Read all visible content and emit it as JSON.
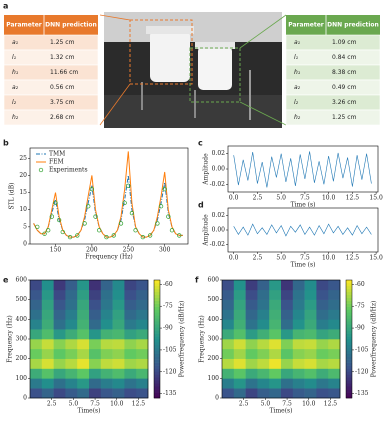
{
  "panel_labels": [
    "a",
    "b",
    "c",
    "d",
    "e",
    "f"
  ],
  "tables": [
    {
      "header": [
        "Parameter",
        "DNN prediction"
      ],
      "header_color": "#e8792c",
      "row_colors": [
        "#fbe3d3",
        "#fdf1e8"
      ],
      "rows": [
        [
          "a₁",
          "1.25 cm"
        ],
        [
          "l₁",
          "1.32 cm"
        ],
        [
          "h₁",
          "11.66 cm"
        ],
        [
          "a₂",
          "0.56 cm"
        ],
        [
          "l₂",
          "3.75 cm"
        ],
        [
          "h₂",
          "2.68 cm"
        ]
      ]
    },
    {
      "header": [
        "Parameter",
        "DNN prediction"
      ],
      "header_color": "#6aa84f",
      "row_colors": [
        "#dcebd3",
        "#eef5e9"
      ],
      "rows": [
        [
          "a₁",
          "1.09 cm"
        ],
        [
          "l₁",
          "0.84 cm"
        ],
        [
          "h₁",
          "8.38 cm"
        ],
        [
          "a₂",
          "0.49 cm"
        ],
        [
          "l₂",
          "3.26 cm"
        ],
        [
          "h₂",
          "1.25 cm"
        ]
      ]
    }
  ],
  "chart_data": [
    {
      "type": "line",
      "xlabel": "Frequency (Hz)",
      "ylabel": "STL (dB)",
      "legend": "upper left",
      "x": [
        120,
        125,
        130,
        135,
        140,
        145,
        150,
        155,
        160,
        165,
        170,
        175,
        180,
        185,
        190,
        195,
        200,
        205,
        210,
        215,
        220,
        225,
        230,
        235,
        240,
        245,
        250,
        255,
        260,
        265,
        270,
        275,
        280,
        285,
        290,
        295,
        300,
        305,
        310,
        315,
        320,
        325
      ],
      "xlim": [
        115,
        332
      ],
      "xticks": [
        150,
        200,
        250,
        300
      ],
      "ylim": [
        0,
        28
      ],
      "yticks": [
        0,
        5,
        10,
        15,
        20,
        25
      ],
      "series": [
        {
          "name": "TMM",
          "color": "#1f77b4",
          "style": "dashdot",
          "values": [
            6,
            4,
            3,
            3,
            5,
            9,
            13,
            7,
            4,
            2.5,
            2,
            2,
            2.5,
            4,
            7,
            12,
            17,
            9,
            5,
            3,
            2,
            2,
            2.5,
            4,
            7,
            13,
            20,
            10,
            5,
            3,
            2,
            2,
            2.5,
            4,
            7,
            12,
            18,
            9,
            5,
            3,
            2.5,
            2.5
          ]
        },
        {
          "name": "FEM",
          "color": "#ff7f0e",
          "style": "solid",
          "values": [
            6,
            4,
            3,
            3,
            5,
            10,
            15,
            8,
            4,
            2.5,
            2,
            2,
            2.5,
            4,
            8,
            14,
            20,
            10,
            5,
            3,
            2,
            2,
            2.5,
            4,
            8,
            16,
            27,
            12,
            5,
            3,
            2,
            2,
            2.5,
            4,
            8,
            14,
            21,
            10,
            5,
            3,
            2.5,
            2.5
          ]
        },
        {
          "name": "Experiments",
          "color": "#2ca02c",
          "style": "marker",
          "x": [
            125,
            135,
            140,
            145,
            150,
            155,
            160,
            170,
            180,
            190,
            195,
            200,
            205,
            210,
            220,
            230,
            240,
            245,
            250,
            255,
            260,
            270,
            280,
            290,
            295,
            300,
            305,
            310,
            320
          ],
          "values": [
            5,
            3,
            4,
            8,
            12,
            7,
            3.5,
            2,
            2.5,
            6,
            11,
            16,
            8,
            4,
            2,
            2.5,
            6,
            12,
            17,
            9,
            4,
            2,
            2.5,
            6,
            11,
            16,
            8,
            4,
            2.5
          ]
        }
      ]
    },
    {
      "type": "signal",
      "xlabel": "Time (s)",
      "ylabel": "Amplitude",
      "color": "#1f77b4",
      "x": [
        0,
        0.5,
        1,
        1.5,
        2,
        2.5,
        3,
        3.5,
        4,
        4.5,
        5,
        5.5,
        6,
        6.5,
        7,
        7.5,
        8,
        8.5,
        9,
        9.5,
        10,
        10.5,
        11,
        11.5,
        12,
        12.5,
        13,
        13.5,
        14,
        14.5
      ],
      "values": [
        0.018,
        -0.021,
        0.012,
        -0.015,
        0.022,
        -0.019,
        0.009,
        -0.024,
        0.016,
        -0.011,
        0.02,
        -0.017,
        0.014,
        -0.022,
        0.019,
        -0.013,
        0.023,
        -0.018,
        0.01,
        -0.02,
        0.017,
        -0.016,
        0.021,
        -0.012,
        0.015,
        -0.023,
        0.018,
        -0.014,
        0.02,
        -0.019
      ],
      "xlim": [
        -0.6,
        15.2
      ],
      "xticks": [
        {
          "value": 0,
          "label": "0.0"
        },
        2.5,
        {
          "value": 5,
          "label": "5.0"
        },
        7.5,
        {
          "value": 10,
          "label": "10.0"
        },
        12.5,
        {
          "value": 15,
          "label": "15.0"
        }
      ],
      "ylim": [
        -0.03,
        0.03
      ],
      "yticks": [
        -0.02,
        {
          "value": 0,
          "label": "0.00"
        },
        0.02
      ]
    },
    {
      "type": "signal",
      "xlabel": "Time (s)",
      "ylabel": "Amplitude",
      "color": "#1f77b4",
      "x": [
        0,
        0.5,
        1,
        1.5,
        2,
        2.5,
        3,
        3.5,
        4,
        4.5,
        5,
        5.5,
        6,
        6.5,
        7,
        7.5,
        8,
        8.5,
        9,
        9.5,
        10,
        10.5,
        11,
        11.5,
        12,
        12.5,
        13,
        13.5,
        14,
        14.5
      ],
      "values": [
        0.005,
        -0.006,
        0.004,
        -0.007,
        0.008,
        -0.005,
        0.003,
        -0.006,
        0.007,
        -0.004,
        0.006,
        -0.008,
        0.005,
        -0.003,
        0.007,
        -0.006,
        0.004,
        -0.007,
        0.006,
        -0.005,
        0.008,
        -0.004,
        0.005,
        -0.006,
        0.003,
        -0.007,
        0.006,
        -0.005,
        0.004,
        -0.006
      ],
      "xlim": [
        -0.6,
        15.2
      ],
      "xticks": [
        {
          "value": 0,
          "label": "0.0"
        },
        2.5,
        {
          "value": 5,
          "label": "5.0"
        },
        7.5,
        {
          "value": 10,
          "label": "10.0"
        },
        12.5,
        {
          "value": 15,
          "label": "15.0"
        }
      ],
      "ylim": [
        -0.03,
        0.03
      ],
      "yticks": [
        -0.02,
        {
          "value": 0,
          "label": "0.00"
        },
        0.02
      ]
    },
    {
      "type": "heatmap",
      "xlabel": "Time(s)",
      "ylabel": "Frequency (Hz)",
      "colorbar_label": "Power/frequency (dB/Hz)",
      "colorscale": [
        "#440154",
        "#3b528b",
        "#21918c",
        "#5ec962",
        "#fde725"
      ],
      "xlim": [
        0,
        13.6
      ],
      "xticks": [
        {
          "value": 2.5,
          "label": "2.5"
        },
        {
          "value": 5,
          "label": "5.0"
        },
        {
          "value": 7.5,
          "label": "7.5"
        },
        {
          "value": 10,
          "label": "10.0"
        },
        {
          "value": 12.5,
          "label": "12.5"
        }
      ],
      "ylim": [
        0,
        600
      ],
      "yticks": [
        0,
        100,
        200,
        300,
        400,
        500,
        600
      ],
      "clim": [
        -138,
        -57
      ],
      "cticks": [
        -60,
        -75,
        -90,
        -105,
        -120,
        -135
      ],
      "z": [
        [
          -118,
          -112,
          -120,
          -115,
          -110,
          -122,
          -116,
          -113,
          -119,
          -117
        ],
        [
          -105,
          -98,
          -108,
          -102,
          -95,
          -110,
          -104,
          -100,
          -107,
          -103
        ],
        [
          -88,
          -80,
          -90,
          -85,
          -78,
          -92,
          -86,
          -82,
          -89,
          -84
        ],
        [
          -68,
          -62,
          -70,
          -66,
          -60,
          -72,
          -65,
          -63,
          -69,
          -67
        ],
        [
          -76,
          -70,
          -78,
          -74,
          -68,
          -80,
          -73,
          -71,
          -77,
          -75
        ],
        [
          -70,
          -64,
          -72,
          -67,
          -62,
          -74,
          -66,
          -65,
          -71,
          -68
        ],
        [
          -90,
          -82,
          -95,
          -88,
          -80,
          -96,
          -86,
          -84,
          -92,
          -89
        ],
        [
          -102,
          -88,
          -108,
          -100,
          -86,
          -110,
          -98,
          -90,
          -105,
          -101
        ],
        [
          -108,
          -90,
          -112,
          -104,
          -88,
          -114,
          -102,
          -92,
          -110,
          -106
        ],
        [
          -112,
          -92,
          -116,
          -108,
          -90,
          -118,
          -106,
          -95,
          -114,
          -110
        ],
        [
          -116,
          -95,
          -120,
          -110,
          -93,
          -122,
          -108,
          -98,
          -118,
          -113
        ],
        [
          -120,
          -98,
          -124,
          -114,
          -96,
          -126,
          -112,
          -100,
          -121,
          -117
        ]
      ]
    },
    {
      "type": "heatmap",
      "xlabel": "Time(s)",
      "ylabel": "Frequency (Hz)",
      "colorbar_label": "Power/frequency (dB/Hz)",
      "colorscale": [
        "#440154",
        "#3b528b",
        "#21918c",
        "#5ec962",
        "#fde725"
      ],
      "xlim": [
        0,
        13.6
      ],
      "xticks": [
        {
          "value": 2.5,
          "label": "2.5"
        },
        {
          "value": 5,
          "label": "5.0"
        },
        {
          "value": 7.5,
          "label": "7.5"
        },
        {
          "value": 10,
          "label": "10.0"
        },
        {
          "value": 12.5,
          "label": "12.5"
        }
      ],
      "ylim": [
        0,
        600
      ],
      "yticks": [
        0,
        100,
        200,
        300,
        400,
        500,
        600
      ],
      "clim": [
        -138,
        -57
      ],
      "cticks": [
        -60,
        -75,
        -90,
        -105,
        -120,
        -135
      ],
      "z": [
        [
          -117,
          -110,
          -121,
          -114,
          -111,
          -120,
          -115,
          -112,
          -118,
          -116
        ],
        [
          -104,
          -96,
          -107,
          -101,
          -96,
          -108,
          -103,
          -99,
          -106,
          -102
        ],
        [
          -86,
          -79,
          -89,
          -84,
          -77,
          -90,
          -85,
          -81,
          -88,
          -83
        ],
        [
          -66,
          -61,
          -69,
          -65,
          -59,
          -70,
          -64,
          -62,
          -68,
          -66
        ],
        [
          -75,
          -69,
          -77,
          -73,
          -67,
          -79,
          -72,
          -70,
          -76,
          -74
        ],
        [
          -69,
          -63,
          -71,
          -66,
          -61,
          -73,
          -65,
          -64,
          -70,
          -67
        ],
        [
          -89,
          -81,
          -94,
          -87,
          -79,
          -95,
          -85,
          -83,
          -91,
          -88
        ],
        [
          -101,
          -87,
          -107,
          -99,
          -85,
          -109,
          -97,
          -89,
          -104,
          -100
        ],
        [
          -107,
          -89,
          -111,
          -103,
          -87,
          -113,
          -101,
          -91,
          -109,
          -105
        ],
        [
          -111,
          -91,
          -115,
          -107,
          -89,
          -117,
          -105,
          -94,
          -113,
          -109
        ],
        [
          -115,
          -94,
          -119,
          -109,
          -92,
          -121,
          -107,
          -97,
          -117,
          -112
        ],
        [
          -119,
          -97,
          -123,
          -113,
          -95,
          -125,
          -111,
          -99,
          -120,
          -116
        ]
      ]
    }
  ]
}
